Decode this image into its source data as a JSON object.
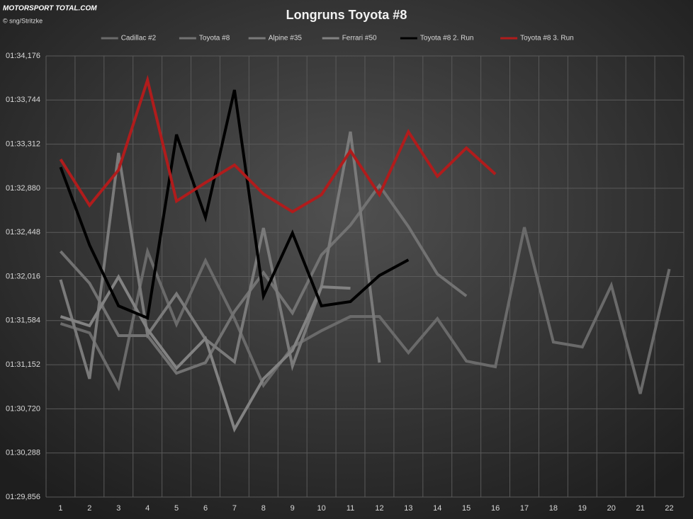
{
  "logo": "MOTORSPORT TOTAL.COM",
  "credit": "© sng/Stritzke",
  "chart_data": {
    "type": "line",
    "title": "Longruns Toyota #8",
    "categories": [
      1,
      2,
      3,
      4,
      5,
      6,
      7,
      8,
      9,
      10,
      11,
      12,
      13,
      14,
      15,
      16,
      17,
      18,
      19,
      20,
      21,
      22
    ],
    "ylim": [
      89.856,
      94.176
    ],
    "yticks": [
      {
        "value": 89.856,
        "label": "01:29,856"
      },
      {
        "value": 90.288,
        "label": "01:30,288"
      },
      {
        "value": 90.72,
        "label": "01:30,720"
      },
      {
        "value": 91.152,
        "label": "01:31,152"
      },
      {
        "value": 91.584,
        "label": "01:31,584"
      },
      {
        "value": 92.016,
        "label": "01:32,016"
      },
      {
        "value": 92.448,
        "label": "01:32,448"
      },
      {
        "value": 92.88,
        "label": "01:32,880"
      },
      {
        "value": 93.312,
        "label": "01:33,312"
      },
      {
        "value": 93.744,
        "label": "01:33,744"
      },
      {
        "value": 94.176,
        "label": "01:34,176"
      }
    ],
    "grid": true,
    "legend": "top",
    "series": [
      {
        "name": "Cadillac #2",
        "color": "#6a6a6a",
        "values": [
          91.555,
          91.464,
          90.931,
          92.262,
          91.548,
          92.172,
          91.603,
          90.951,
          91.326,
          91.485,
          91.624,
          91.624,
          91.27,
          91.603,
          91.187,
          91.132,
          92.498,
          91.374,
          91.326,
          91.929,
          90.868,
          92.089
        ]
      },
      {
        "name": "Toyota #8",
        "color": "#727272",
        "values": [
          92.262,
          91.95,
          91.437,
          91.437,
          91.069,
          91.173,
          91.673,
          92.054,
          91.659,
          92.227,
          92.519,
          92.907,
          92.505,
          92.04,
          91.825,
          null,
          null,
          null,
          null,
          null,
          null,
          null
        ]
      },
      {
        "name": "Alpine #35",
        "color": "#7a7a7a",
        "values": [
          91.985,
          91.014,
          93.226,
          91.444,
          91.846,
          91.402,
          91.18,
          92.491,
          91.139,
          91.915,
          93.434,
          91.173,
          null,
          null,
          null,
          null,
          null,
          null,
          null,
          null,
          null,
          null
        ]
      },
      {
        "name": "Ferrari #50",
        "color": "#828282",
        "values": [
          91.624,
          91.534,
          92.012,
          91.499,
          91.118,
          91.409,
          90.521,
          91.014,
          91.291,
          91.915,
          91.901,
          null,
          null,
          null,
          null,
          null,
          null,
          null,
          null,
          null,
          null,
          null
        ]
      },
      {
        "name": "Toyota #8 2. Run",
        "color": "#000000",
        "values": [
          93.087,
          92.324,
          91.728,
          91.61,
          93.406,
          92.595,
          93.843,
          91.825,
          92.442,
          91.728,
          91.77,
          92.026,
          92.179,
          null,
          null,
          null,
          null,
          null,
          null,
          null,
          null,
          null
        ]
      },
      {
        "name": "Toyota #8 3. Run",
        "color": "#b01c1c",
        "values": [
          93.164,
          92.713,
          93.059,
          93.94,
          92.754,
          92.935,
          93.108,
          92.824,
          92.65,
          92.817,
          93.247,
          92.817,
          93.434,
          92.997,
          93.275,
          93.018,
          null,
          null,
          null,
          null,
          null,
          null
        ]
      }
    ]
  }
}
